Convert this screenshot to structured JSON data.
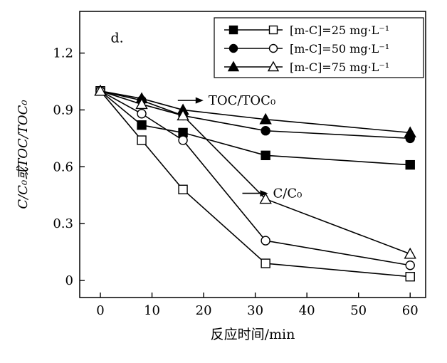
{
  "chart_data": {
    "type": "line",
    "panel_label": "d.",
    "xlabel": "反应时间/min",
    "ylabel": "C/C₀或TOC/TOC₀",
    "x": [
      0,
      8,
      16,
      32,
      60
    ],
    "xlim": [
      -4,
      63
    ],
    "ylim": [
      -0.09,
      1.42
    ],
    "xticks": [
      0,
      10,
      20,
      30,
      40,
      50,
      60
    ],
    "yticks": [
      0,
      0.3,
      0.6,
      0.9,
      1.2
    ],
    "grid": false,
    "series": [
      {
        "name": "TOC/TOC₀ [m-C]=25 mg·L⁻¹",
        "marker": "square",
        "filled": true,
        "values": [
          1.0,
          0.82,
          0.78,
          0.66,
          0.61
        ]
      },
      {
        "name": "TOC/TOC₀ [m-C]=50 mg·L⁻¹",
        "marker": "circle",
        "filled": true,
        "values": [
          1.0,
          0.95,
          0.87,
          0.79,
          0.75
        ]
      },
      {
        "name": "TOC/TOC₀ [m-C]=75 mg·L⁻¹",
        "marker": "triangle",
        "filled": true,
        "values": [
          1.0,
          0.96,
          0.9,
          0.85,
          0.78
        ]
      },
      {
        "name": "C/C₀ [m-C]=25 mg·L⁻¹",
        "marker": "square",
        "filled": false,
        "values": [
          1.0,
          0.74,
          0.48,
          0.09,
          0.02
        ]
      },
      {
        "name": "C/C₀ [m-C]=50 mg·L⁻¹",
        "marker": "circle",
        "filled": false,
        "values": [
          1.0,
          0.88,
          0.74,
          0.21,
          0.08
        ]
      },
      {
        "name": "C/C₀ [m-C]=75 mg·L⁻¹",
        "marker": "triangle",
        "filled": false,
        "values": [
          1.0,
          0.93,
          0.87,
          0.43,
          0.14
        ]
      }
    ],
    "legend": {
      "position": "top-right",
      "entries": [
        {
          "label": "[m-C]=25 mg·L⁻¹",
          "marker": "square"
        },
        {
          "label": "[m-C]=50 mg·L⁻¹",
          "marker": "circle"
        },
        {
          "label": "[m-C]=75 mg·L⁻¹",
          "marker": "triangle"
        }
      ]
    },
    "annotations": [
      {
        "text": "TOC/TOC₀",
        "x": 15.0,
        "y": 0.95
      },
      {
        "text": "C/C₀",
        "x": 27.5,
        "y": 0.46
      }
    ],
    "colors": {
      "line": "#000000",
      "background": "#ffffff"
    }
  }
}
